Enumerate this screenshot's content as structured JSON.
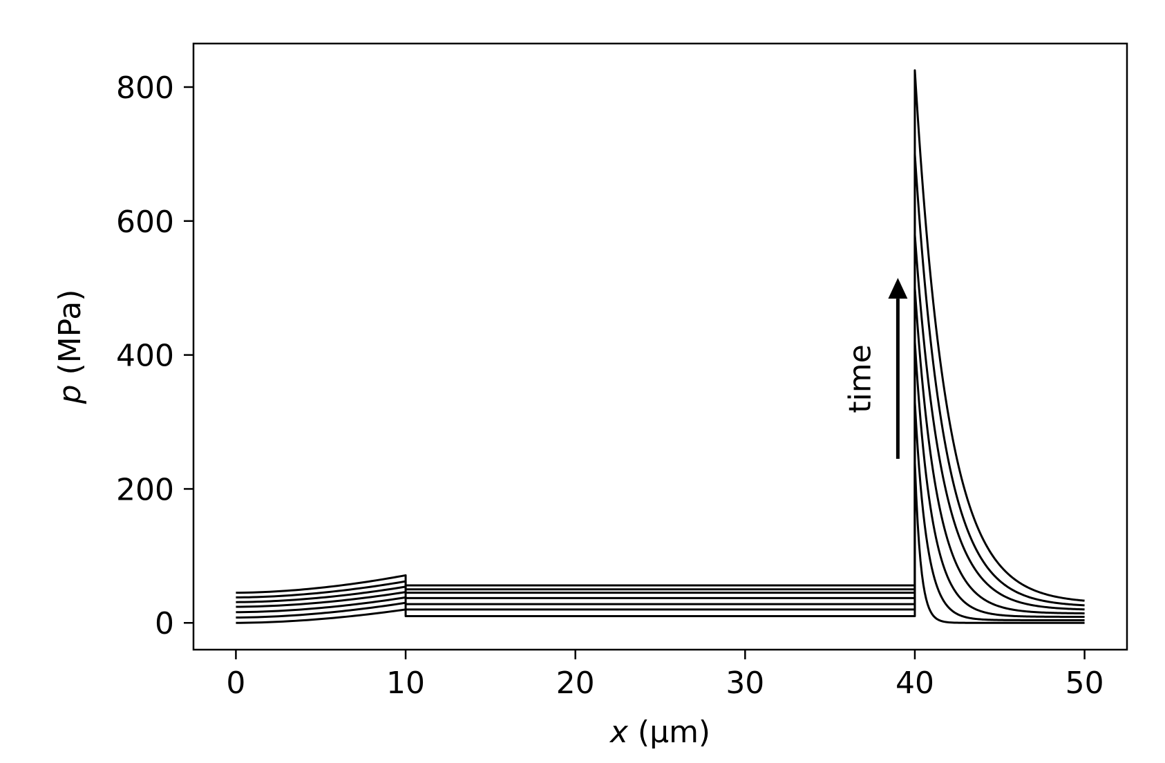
{
  "chart_data": {
    "type": "line",
    "xlabel_var": "x",
    "xlabel_unit": " (μm)",
    "ylabel_var": "p",
    "ylabel_unit": " (MPa)",
    "xlim": [
      -2.5,
      52.5
    ],
    "ylim": [
      -40,
      865
    ],
    "xticks": [
      0,
      10,
      20,
      30,
      40,
      50
    ],
    "yticks": [
      0,
      200,
      400,
      600,
      800
    ],
    "grid": false,
    "legend": "none",
    "line_color": "#000000",
    "annotation": {
      "text": "time",
      "x": 39.0,
      "y_start": 245,
      "y_end": 515
    },
    "series": [
      {
        "left": [
          0,
          20
        ],
        "mid": 10,
        "peak": 240,
        "decay": 0.35,
        "right_end": 0
      },
      {
        "left": [
          8,
          30
        ],
        "mid": 20,
        "peak": 330,
        "decay": 0.7,
        "right_end": 4
      },
      {
        "left": [
          16,
          38
        ],
        "mid": 28,
        "peak": 420,
        "decay": 1.0,
        "right_end": 9
      },
      {
        "left": [
          24,
          46
        ],
        "mid": 37,
        "peak": 500,
        "decay": 1.3,
        "right_end": 14
      },
      {
        "left": [
          31,
          54
        ],
        "mid": 45,
        "peak": 580,
        "decay": 1.6,
        "right_end": 19
      },
      {
        "left": [
          38,
          62
        ],
        "mid": 50,
        "peak": 700,
        "decay": 1.75,
        "right_end": 24
      },
      {
        "left": [
          45,
          71
        ],
        "mid": 56,
        "peak": 825,
        "decay": 1.9,
        "right_end": 29
      }
    ]
  }
}
